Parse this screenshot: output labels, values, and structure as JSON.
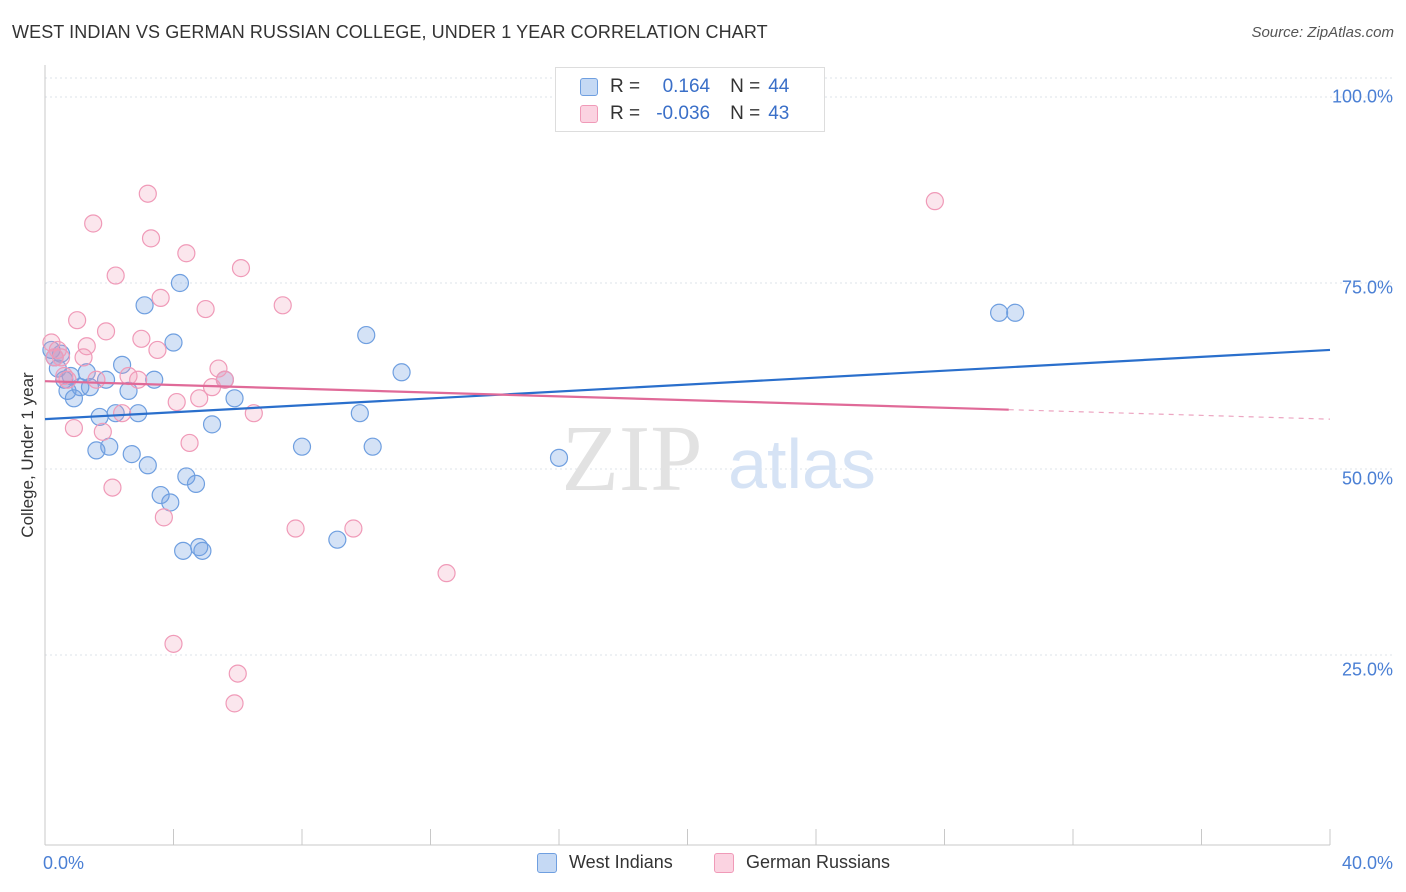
{
  "header": {
    "title": "WEST INDIAN VS GERMAN RUSSIAN COLLEGE, UNDER 1 YEAR CORRELATION CHART",
    "source": "Source: ZipAtlas.com"
  },
  "watermark": {
    "zip": "ZIP",
    "atlas": "atlas"
  },
  "legend": {
    "r_label": "R =",
    "n_label": "N =",
    "series1": {
      "r": "0.164",
      "n": "44"
    },
    "series2": {
      "r": "-0.036",
      "n": "43"
    }
  },
  "colors": {
    "west_indians": "#6f9fe0",
    "german_russians": "#f09ab8",
    "west_indians_line": "#2a6fcc",
    "german_russians_line": "#e06a98",
    "tick_text": "#4a7fd4"
  },
  "chart_data": {
    "type": "scatter",
    "title": "WEST INDIAN VS GERMAN RUSSIAN COLLEGE, UNDER 1 YEAR CORRELATION CHART",
    "xlabel": "",
    "ylabel": "College, Under 1 year",
    "xlim": [
      0,
      40
    ],
    "ylim": [
      0,
      105
    ],
    "x_tick_labels": [
      "0.0%",
      "40.0%"
    ],
    "y_tick_labels": [
      "100.0%",
      "75.0%",
      "50.0%",
      "25.0%"
    ],
    "y_tick_values": [
      100,
      75,
      50,
      25
    ],
    "grid": true,
    "legend_position": "bottom",
    "series": [
      {
        "name": "West Indians",
        "r": 0.164,
        "n": 44,
        "trend": {
          "x": [
            0,
            40
          ],
          "y": [
            56.7,
            66.0
          ],
          "dashed_from": null
        },
        "points": [
          {
            "x": 0.2,
            "y": 66.0
          },
          {
            "x": 0.3,
            "y": 65.0
          },
          {
            "x": 0.4,
            "y": 63.5
          },
          {
            "x": 0.5,
            "y": 65.5
          },
          {
            "x": 0.6,
            "y": 62.0
          },
          {
            "x": 0.7,
            "y": 60.5
          },
          {
            "x": 0.8,
            "y": 62.5
          },
          {
            "x": 0.9,
            "y": 59.5
          },
          {
            "x": 1.1,
            "y": 61.0
          },
          {
            "x": 1.3,
            "y": 63.0
          },
          {
            "x": 1.4,
            "y": 61.0
          },
          {
            "x": 1.6,
            "y": 52.5
          },
          {
            "x": 1.7,
            "y": 57.0
          },
          {
            "x": 1.9,
            "y": 62.0
          },
          {
            "x": 2.0,
            "y": 53.0
          },
          {
            "x": 2.2,
            "y": 57.5
          },
          {
            "x": 2.4,
            "y": 64.0
          },
          {
            "x": 2.6,
            "y": 60.5
          },
          {
            "x": 2.7,
            "y": 52.0
          },
          {
            "x": 2.9,
            "y": 57.5
          },
          {
            "x": 3.1,
            "y": 72.0
          },
          {
            "x": 3.2,
            "y": 50.5
          },
          {
            "x": 3.4,
            "y": 62.0
          },
          {
            "x": 3.6,
            "y": 46.5
          },
          {
            "x": 3.9,
            "y": 45.5
          },
          {
            "x": 4.0,
            "y": 67.0
          },
          {
            "x": 4.2,
            "y": 75.0
          },
          {
            "x": 4.4,
            "y": 49.0
          },
          {
            "x": 4.3,
            "y": 39.0
          },
          {
            "x": 4.7,
            "y": 48.0
          },
          {
            "x": 4.8,
            "y": 39.5
          },
          {
            "x": 4.9,
            "y": 39.0
          },
          {
            "x": 5.2,
            "y": 56.0
          },
          {
            "x": 5.6,
            "y": 62.0
          },
          {
            "x": 5.9,
            "y": 59.5
          },
          {
            "x": 8.0,
            "y": 53.0
          },
          {
            "x": 9.1,
            "y": 40.5
          },
          {
            "x": 9.8,
            "y": 57.5
          },
          {
            "x": 10.0,
            "y": 68.0
          },
          {
            "x": 10.2,
            "y": 53.0
          },
          {
            "x": 11.1,
            "y": 63.0
          },
          {
            "x": 16.0,
            "y": 51.5
          },
          {
            "x": 29.7,
            "y": 71.0
          },
          {
            "x": 30.2,
            "y": 71.0
          }
        ]
      },
      {
        "name": "German Russians",
        "r": -0.036,
        "n": 43,
        "trend": {
          "x": [
            0,
            40
          ],
          "y": [
            61.8,
            56.7
          ],
          "dashed_from": 30.0
        },
        "points": [
          {
            "x": 0.2,
            "y": 67.0
          },
          {
            "x": 0.3,
            "y": 65.0
          },
          {
            "x": 0.4,
            "y": 66.0
          },
          {
            "x": 0.5,
            "y": 65.0
          },
          {
            "x": 0.7,
            "y": 62.0
          },
          {
            "x": 0.9,
            "y": 55.5
          },
          {
            "x": 1.0,
            "y": 70.0
          },
          {
            "x": 1.2,
            "y": 65.0
          },
          {
            "x": 1.3,
            "y": 66.5
          },
          {
            "x": 1.5,
            "y": 83.0
          },
          {
            "x": 1.6,
            "y": 62.0
          },
          {
            "x": 1.8,
            "y": 55.0
          },
          {
            "x": 1.9,
            "y": 68.5
          },
          {
            "x": 2.1,
            "y": 47.5
          },
          {
            "x": 2.2,
            "y": 76.0
          },
          {
            "x": 2.4,
            "y": 57.5
          },
          {
            "x": 2.6,
            "y": 62.5
          },
          {
            "x": 2.9,
            "y": 62.0
          },
          {
            "x": 3.0,
            "y": 67.5
          },
          {
            "x": 3.2,
            "y": 87.0
          },
          {
            "x": 3.3,
            "y": 81.0
          },
          {
            "x": 3.5,
            "y": 66.0
          },
          {
            "x": 3.6,
            "y": 73.0
          },
          {
            "x": 3.7,
            "y": 43.5
          },
          {
            "x": 4.0,
            "y": 26.5
          },
          {
            "x": 4.1,
            "y": 59.0
          },
          {
            "x": 4.4,
            "y": 79.0
          },
          {
            "x": 4.5,
            "y": 53.5
          },
          {
            "x": 4.8,
            "y": 59.5
          },
          {
            "x": 5.0,
            "y": 71.5
          },
          {
            "x": 5.2,
            "y": 61.0
          },
          {
            "x": 5.4,
            "y": 63.5
          },
          {
            "x": 5.6,
            "y": 62.0
          },
          {
            "x": 5.9,
            "y": 18.5
          },
          {
            "x": 6.1,
            "y": 77.0
          },
          {
            "x": 6.0,
            "y": 22.5
          },
          {
            "x": 6.5,
            "y": 57.5
          },
          {
            "x": 7.4,
            "y": 72.0
          },
          {
            "x": 7.8,
            "y": 42.0
          },
          {
            "x": 9.6,
            "y": 42.0
          },
          {
            "x": 12.5,
            "y": 36.0
          },
          {
            "x": 27.7,
            "y": 86.0
          },
          {
            "x": 0.6,
            "y": 62.5
          }
        ]
      }
    ]
  }
}
